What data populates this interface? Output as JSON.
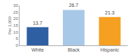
{
  "chart_data": {
    "type": "bar",
    "categories": [
      "White",
      "Black",
      "Hispanic"
    ],
    "values": [
      13.7,
      26.7,
      21.3
    ],
    "colors": [
      "#2E5FA3",
      "#A8C8E8",
      "#F5A020"
    ],
    "ylabel": "Per 1,000",
    "ylim": [
      0,
      30
    ],
    "yticks": [
      0,
      5,
      10,
      15,
      20,
      25,
      30
    ],
    "data_labels": true,
    "grid": false
  }
}
